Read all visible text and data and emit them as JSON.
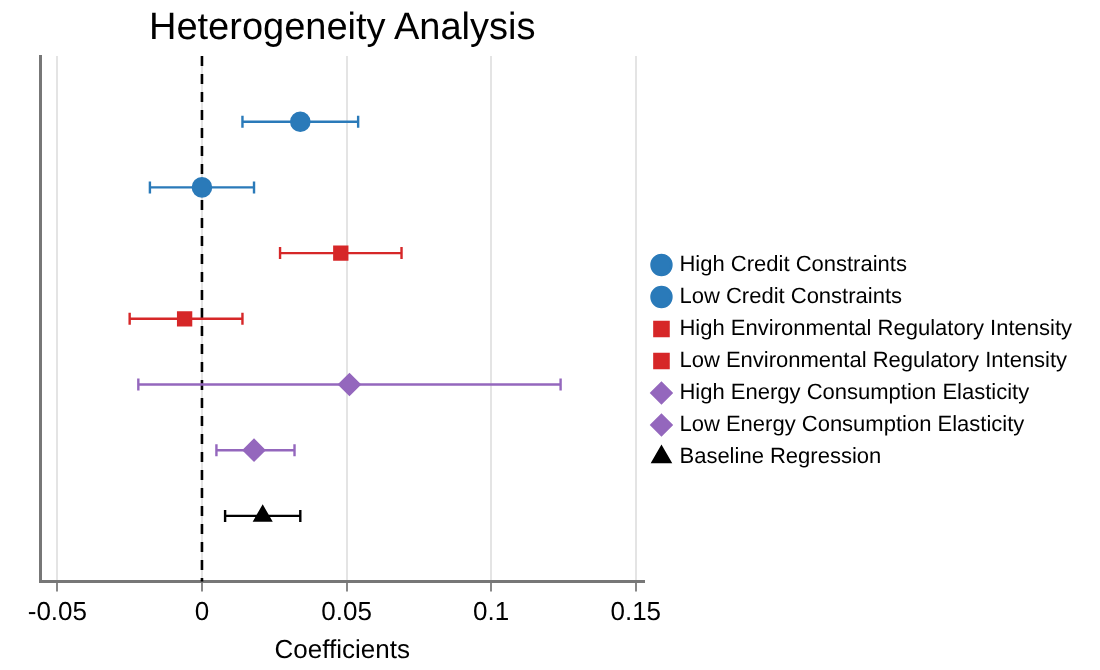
{
  "chart_data": {
    "type": "scatter",
    "orientation": "horizontal",
    "title": "Heterogeneity Analysis",
    "xlabel": "Coefficients",
    "categories": [
      null,
      null,
      null,
      null,
      null,
      null,
      null
    ],
    "series": [
      {
        "name": "High Credit Constraints",
        "color": "#2a7ab9",
        "marker": "circle",
        "values": [
          0.034,
          null,
          null,
          null,
          null,
          null,
          null
        ],
        "errors": [
          [
            0.014,
            0.054
          ],
          null,
          null,
          null,
          null,
          null,
          null
        ]
      },
      {
        "name": "Low Credit Constraints",
        "color": "#2a7ab9",
        "marker": "circle",
        "values": [
          null,
          0,
          null,
          null,
          null,
          null,
          null
        ],
        "errors": [
          null,
          [
            -0.018,
            0.018
          ],
          null,
          null,
          null,
          null,
          null
        ]
      },
      {
        "name": "High Environmental Regulatory Intensity",
        "color": "#d62728",
        "marker": "square",
        "values": [
          null,
          null,
          0.048,
          null,
          null,
          null,
          null
        ],
        "errors": [
          null,
          null,
          [
            0.027,
            0.069
          ],
          null,
          null,
          null,
          null
        ]
      },
      {
        "name": "Low Environmental Regulatory Intensity",
        "color": "#d62728",
        "marker": "square",
        "values": [
          null,
          null,
          null,
          -0.006,
          null,
          null,
          null
        ],
        "errors": [
          null,
          null,
          null,
          [
            -0.025,
            0.014
          ],
          null,
          null,
          null
        ]
      },
      {
        "name": "High Energy Consumption Elasticity",
        "color": "#9467bd",
        "marker": "diamond",
        "values": [
          null,
          null,
          null,
          null,
          0.051,
          null,
          null
        ],
        "errors": [
          null,
          null,
          null,
          null,
          [
            -0.022,
            0.124
          ],
          null,
          null
        ]
      },
      {
        "name": "Low Energy Consumption Elasticity",
        "color": "#9467bd",
        "marker": "diamond",
        "values": [
          null,
          null,
          null,
          null,
          null,
          0.018,
          null
        ],
        "errors": [
          null,
          null,
          null,
          null,
          null,
          [
            0.005,
            0.032
          ],
          null
        ]
      },
      {
        "name": "Baseline Regression",
        "color": "#000000",
        "marker": "triangle",
        "values": [
          null,
          null,
          null,
          null,
          null,
          null,
          0.021
        ],
        "errors": [
          null,
          null,
          null,
          null,
          null,
          null,
          [
            0.008,
            0.034
          ]
        ]
      }
    ],
    "xlim": [
      -0.056,
      0.153
    ],
    "xticks": [
      -0.05,
      0,
      0.05,
      0.1,
      0.15
    ],
    "grid": "x",
    "legend": "right",
    "ref_lines": [
      {
        "axis": "x",
        "value": 0,
        "color": "#000000",
        "line_style": "dashed"
      }
    ]
  }
}
